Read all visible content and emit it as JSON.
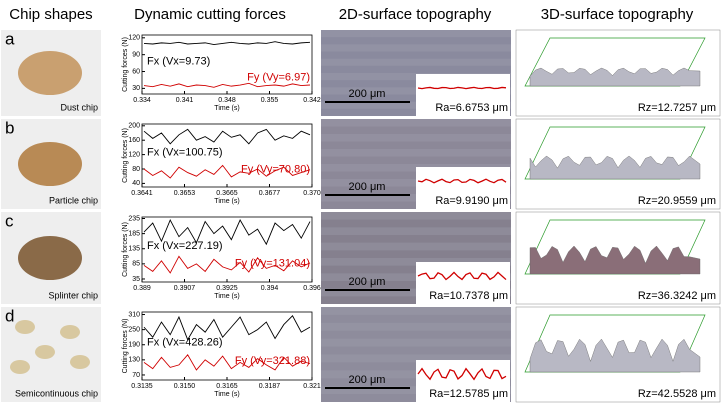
{
  "header": {
    "columns": [
      "Chip shapes",
      "Dynamic cutting forces",
      "2D-surface topography",
      "3D-surface topography"
    ]
  },
  "y_axis_label": "Cutting forces (N)",
  "x_axis_label": "Time (s)",
  "scale_bar": "200 μm",
  "rows": [
    {
      "letter": "a",
      "chip": "Dust chip",
      "fx_label": "Fx (Vx=9.73)",
      "fy_label": "Fy (Vy=6.97)",
      "ylim": [
        20,
        125
      ],
      "yticks": [
        30,
        60,
        90,
        120
      ],
      "xticks": [
        "0.334",
        "0.341",
        "0.348",
        "0.355",
        "0.342"
      ],
      "fx": [
        110,
        109,
        111,
        110,
        112,
        109,
        110,
        111,
        108,
        110,
        112,
        110,
        109,
        111,
        110,
        113,
        110,
        109,
        111,
        112
      ],
      "fy": [
        35,
        33,
        37,
        34,
        38,
        33,
        36,
        35,
        32,
        37,
        34,
        36,
        39,
        33,
        35,
        36,
        34,
        38,
        35,
        36
      ],
      "ra": "Ra=6.6753 μm",
      "rz": "Rz=12.7257 μm"
    },
    {
      "letter": "b",
      "chip": "Particle chip",
      "fx_label": "Fx (Vx=100.75)",
      "fy_label": "Fy (Vy=70.80)",
      "ylim": [
        30,
        205
      ],
      "yticks": [
        40,
        80,
        120,
        160,
        200
      ],
      "xticks": [
        "0.3641",
        "0.3653",
        "0.3665",
        "0.3677",
        "0.370"
      ],
      "fx": [
        185,
        165,
        180,
        150,
        175,
        190,
        160,
        170,
        155,
        185,
        168,
        175,
        150,
        180,
        190,
        160,
        172,
        165,
        185,
        175
      ],
      "fy": [
        80,
        62,
        75,
        55,
        85,
        70,
        60,
        78,
        65,
        90,
        58,
        72,
        68,
        80,
        60,
        75,
        85,
        62,
        70,
        78
      ],
      "ra": "Ra=9.9190 μm",
      "rz": "Rz=20.9559 μm"
    },
    {
      "letter": "c",
      "chip": "Splinter chip",
      "fx_label": "Fx (Vx=227.19)",
      "fy_label": "Fy (Vy=131.04)",
      "ylim": [
        25,
        240
      ],
      "yticks": [
        35,
        85,
        135,
        185,
        235
      ],
      "xticks": [
        "0.389",
        "0.3907",
        "0.3925",
        "0.394",
        "0.396"
      ],
      "fx": [
        190,
        220,
        160,
        230,
        175,
        205,
        155,
        225,
        185,
        210,
        165,
        230,
        180,
        200,
        150,
        220,
        195,
        215,
        170,
        225
      ],
      "fy": [
        80,
        60,
        95,
        55,
        110,
        70,
        85,
        60,
        100,
        75,
        65,
        90,
        58,
        105,
        70,
        80,
        62,
        95,
        75,
        88
      ],
      "ra": "Ra=10.7378 μm",
      "rz": "Rz=36.3242 μm"
    },
    {
      "letter": "d",
      "chip": "Semicontinuous chip",
      "fx_label": "Fx (Vx=428.26)",
      "fy_label": "Fy (Vy=321.88)",
      "ylim": [
        50,
        320
      ],
      "yticks": [
        70,
        130,
        190,
        250,
        310
      ],
      "xticks": [
        "0.3135",
        "0.3150",
        "0.3165",
        "0.3187",
        "0.321"
      ],
      "fx": [
        260,
        220,
        280,
        230,
        300,
        210,
        270,
        240,
        290,
        220,
        260,
        300,
        230,
        250,
        280,
        215,
        270,
        305,
        240,
        260
      ],
      "fy": [
        120,
        95,
        140,
        100,
        110,
        150,
        90,
        130,
        105,
        145,
        95,
        120,
        100,
        135,
        110,
        90,
        140,
        105,
        125,
        115
      ],
      "ra": "Ra=12.5785 μm",
      "rz": "Rz=42.5528 μm"
    }
  ]
}
